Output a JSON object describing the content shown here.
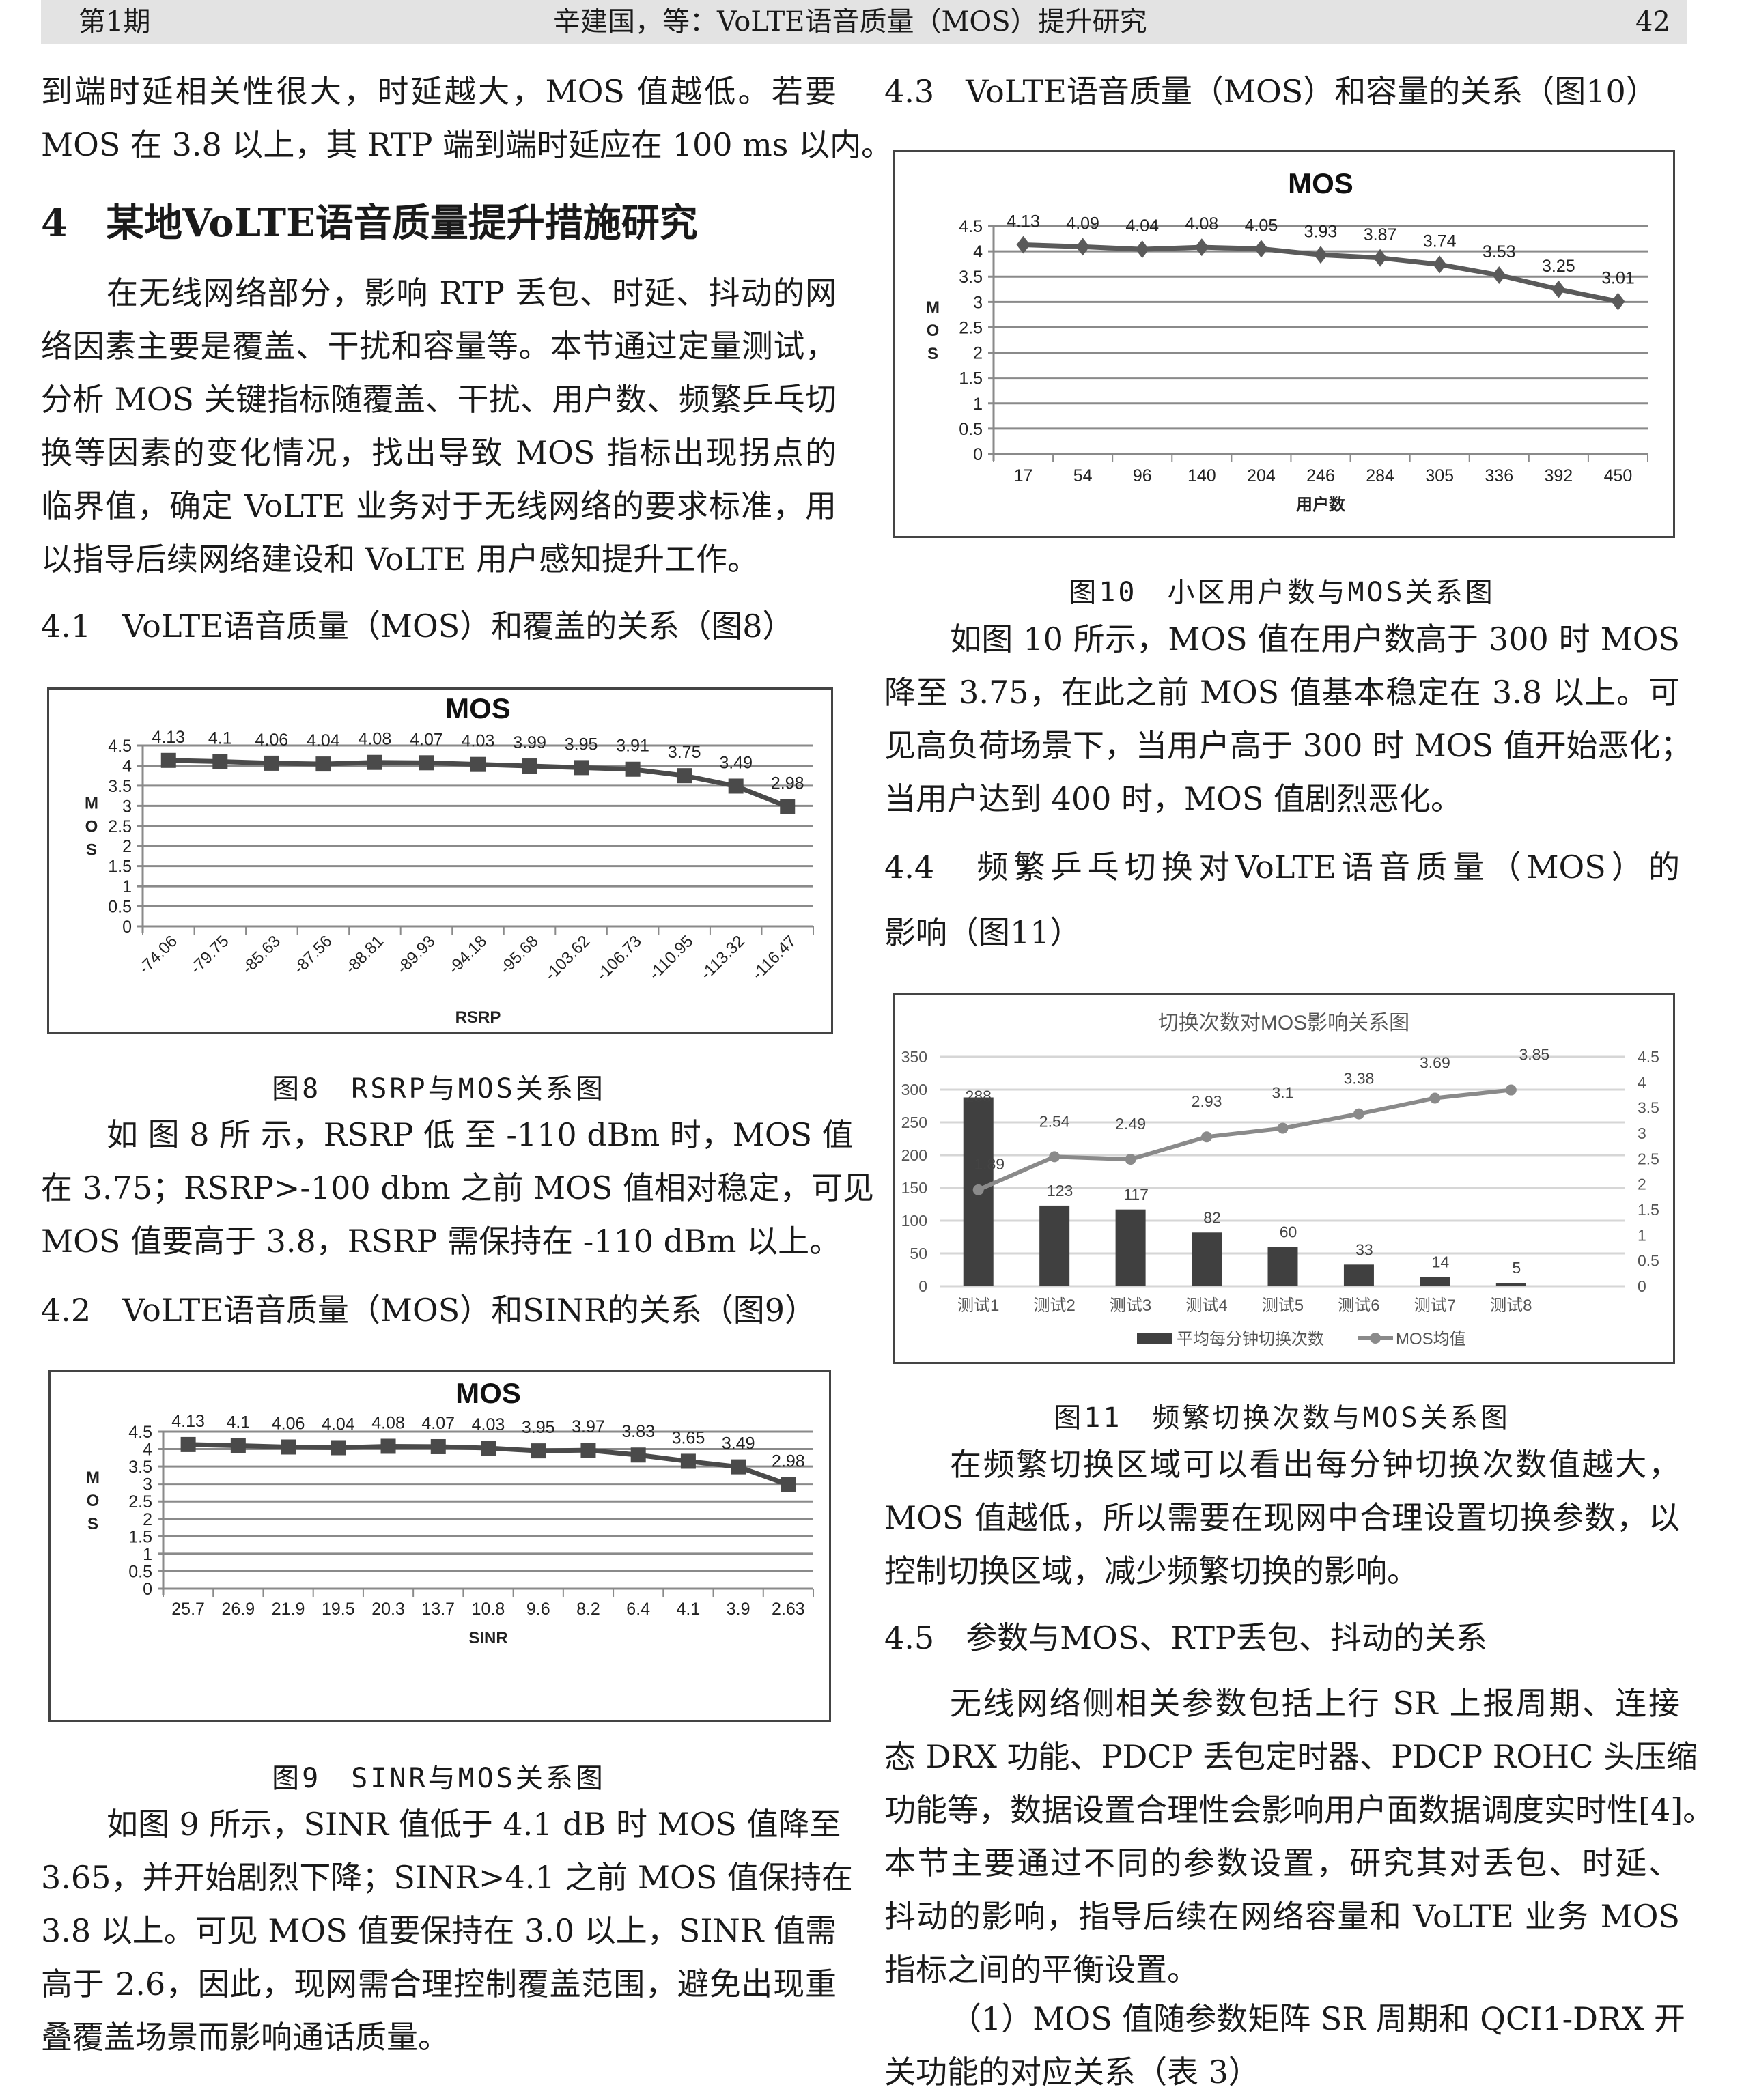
{
  "header": {
    "issue": "第1期",
    "running_title": "辛建国，等：VoLTE语音质量（MOS）提升研究",
    "page": "42"
  },
  "left": {
    "p1": [
      "到端时延相关性很大，时延越大，MOS 值越低。若要",
      "MOS 在 3.8 以上，其 RTP 端到端时延应在 100 ms 以内。"
    ],
    "h_4": "4　某地VoLTE语音质量提升措施研究",
    "p2": [
      "在无线网络部分，影响 RTP 丢包、时延、抖动的网",
      "络因素主要是覆盖、干扰和容量等。本节通过定量测试，",
      "分析 MOS 关键指标随覆盖、干扰、用户数、频繁乒乓切",
      "换等因素的变化情况，找出导致 MOS 指标出现拐点的",
      "临界值，确定 VoLTE 业务对于无线网络的要求标准，用",
      "以指导后续网络建设和 VoLTE 用户感知提升工作。"
    ],
    "h_4_1": "4.1　VoLTE语音质量（MOS）和覆盖的关系（图8）",
    "cap8": "图8　RSRP与MOS关系图",
    "p3": [
      "如 图 8 所 示，RSRP 低 至 -110 dBm 时，MOS 值",
      "在 3.75；RSRP>-100 dbm 之前 MOS 值相对稳定，可见",
      "MOS 值要高于 3.8，RSRP 需保持在 -110 dBm 以上。"
    ],
    "h_4_2": "4.2　VoLTE语音质量（MOS）和SINR的关系（图9）",
    "cap9": "图9　SINR与MOS关系图",
    "p4": [
      "如图 9 所示，SINR 值低于 4.1 dB 时 MOS 值降至",
      "3.65，并开始剧烈下降；SINR>4.1 之前 MOS 值保持在",
      "3.8 以上。可见 MOS 值要保持在 3.0 以上，SINR 值需",
      "高于 2.6，因此，现网需合理控制覆盖范围，避免出现重",
      "叠覆盖场景而影响通话质量。"
    ]
  },
  "right": {
    "h_4_3": "4.3　VoLTE语音质量（MOS）和容量的关系（图10）",
    "cap10": "图10　小区用户数与MOS关系图",
    "p5": [
      "如图 10 所示，MOS 值在用户数高于 300 时 MOS",
      "降至 3.75，在此之前 MOS 值基本稳定在 3.8 以上。可",
      "见高负荷场景下，当用户高于 300 时 MOS 值开始恶化；",
      "当用户达到 400 时，MOS 值剧烈恶化。"
    ],
    "h_4_4": [
      "4.4　频繁乒乓切换对VoLTE语音质量（MOS）的",
      "影响（图11）"
    ],
    "cap11": "图11　频繁切换次数与MOS关系图",
    "p6": [
      "在频繁切换区域可以看出每分钟切换次数值越大，",
      "MOS 值越低，所以需要在现网中合理设置切换参数，以",
      "控制切换区域，减少频繁切换的影响。"
    ],
    "h_4_5": "4.5　参数与MOS、RTP丢包、抖动的关系",
    "p7": [
      "无线网络侧相关参数包括上行 SR 上报周期、连接",
      "态 DRX 功能、PDCP 丢包定时器、PDCP ROHC 头压缩",
      "功能等，数据设置合理性会影响用户面数据调度实时性[4]。",
      "本节主要通过不同的参数设置，研究其对丢包、时延、",
      "抖动的影响，指导后续在网络容量和 VoLTE 业务 MOS",
      "指标之间的平衡设置。"
    ],
    "p8": [
      "（1）MOS 值随参数矩阵 SR 周期和 QCI1-DRX 开",
      "关功能的对应关系（表 3）"
    ]
  },
  "chart_data": [
    {
      "type": "line",
      "title": "MOS",
      "xlabel": "RSRP",
      "ylabel": "MOS",
      "categories": [
        "-74.06",
        "-79.75",
        "-85.63",
        "-87.56",
        "-88.81",
        "-89.93",
        "-94.18",
        "-95.68",
        "-103.62",
        "-106.73",
        "-110.95",
        "-113.32",
        "-116.47"
      ],
      "values": [
        4.13,
        4.1,
        4.06,
        4.04,
        4.08,
        4.07,
        4.03,
        3.99,
        3.95,
        3.91,
        3.75,
        3.49,
        2.98
      ],
      "ylim": [
        0,
        4.5
      ],
      "yticks": [
        0,
        0.5,
        1,
        1.5,
        2,
        2.5,
        3,
        3.5,
        4,
        4.5
      ],
      "grid": true,
      "marker": "square",
      "color": "#4a4a4a"
    },
    {
      "type": "line",
      "title": "MOS",
      "xlabel": "SINR",
      "ylabel": "MOS",
      "categories": [
        "25.7",
        "26.9",
        "21.9",
        "19.5",
        "20.3",
        "13.7",
        "10.8",
        "9.6",
        "8.2",
        "6.4",
        "4.1",
        "3.9",
        "2.63"
      ],
      "values": [
        4.13,
        4.1,
        4.06,
        4.04,
        4.08,
        4.07,
        4.03,
        3.95,
        3.97,
        3.83,
        3.65,
        3.49,
        2.98
      ],
      "ylim": [
        0,
        4.5
      ],
      "yticks": [
        0,
        0.5,
        1,
        1.5,
        2,
        2.5,
        3,
        3.5,
        4,
        4.5
      ],
      "grid": true,
      "marker": "square",
      "color": "#4a4a4a"
    },
    {
      "type": "line",
      "title": "MOS",
      "xlabel": "用户数",
      "ylabel": "MOS",
      "categories": [
        "17",
        "54",
        "96",
        "140",
        "204",
        "246",
        "284",
        "305",
        "336",
        "392",
        "450"
      ],
      "values": [
        4.13,
        4.09,
        4.04,
        4.08,
        4.05,
        3.93,
        3.87,
        3.74,
        3.53,
        3.25,
        3.01
      ],
      "ylim": [
        0,
        4.5
      ],
      "yticks": [
        0,
        0.5,
        1,
        1.5,
        2,
        2.5,
        3,
        3.5,
        4,
        4.5
      ],
      "grid": true,
      "marker": "diamond",
      "color": "#5a5a5a"
    },
    {
      "type": "bar+line",
      "title": "切换次数对MOS影响关系图",
      "categories": [
        "测试1",
        "测试2",
        "测试3",
        "测试4",
        "测试5",
        "测试6",
        "测试7",
        "测试8"
      ],
      "series": [
        {
          "name": "平均每分钟切换次数",
          "type": "bar",
          "axis": "left",
          "values": [
            288,
            123,
            117,
            82,
            60,
            33,
            14,
            5
          ],
          "color": "#404040"
        },
        {
          "name": "MOS均值",
          "type": "line",
          "axis": "right",
          "values": [
            1.89,
            2.54,
            2.49,
            2.93,
            3.1,
            3.38,
            3.69,
            3.85
          ],
          "color": "#8a8a8a"
        }
      ],
      "ylim_left": [
        0,
        350
      ],
      "yticks_left": [
        0,
        50,
        100,
        150,
        200,
        250,
        300,
        350
      ],
      "ylim_right": [
        0,
        4.5
      ],
      "yticks_right": [
        0,
        0.5,
        1,
        1.5,
        2,
        2.5,
        3,
        3.5,
        4,
        4.5
      ],
      "grid": true,
      "legend": "bottom"
    }
  ]
}
